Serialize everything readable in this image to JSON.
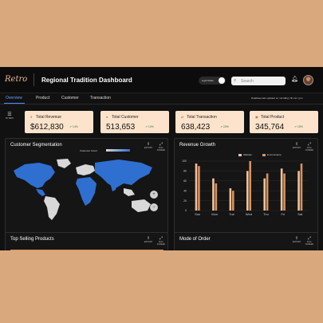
{
  "app": {
    "logo": "Retro",
    "title": "Regional Tradition Dashboard"
  },
  "header": {
    "toggle_label": "Light Mode",
    "search_placeholder": "Search",
    "db_updated": "Database last updated on mm/dd/yy hh:mm | pm"
  },
  "tabs": [
    {
      "label": "Overview",
      "active": true
    },
    {
      "label": "Product",
      "active": false
    },
    {
      "label": "Customer",
      "active": false
    },
    {
      "label": "Transaction",
      "active": false
    }
  ],
  "filters_label": "FILTERS",
  "kpis": [
    {
      "label": "Total Revenue",
      "value": "$612,830",
      "trend": "14%"
    },
    {
      "label": "Total Customer",
      "value": "513,653",
      "trend": "10%"
    },
    {
      "label": "Total Transaction",
      "value": "638,423",
      "trend": "20%"
    },
    {
      "label": "Total Product",
      "value": "345,764",
      "trend": "15%"
    }
  ],
  "customer_segmentation": {
    "title": "Customer Segmentation",
    "legend_label": "Customer Count",
    "export_label": "EXPORT",
    "fullscreen_label": "FULL SCREEN"
  },
  "revenue_growth": {
    "title": "Revenue Growth",
    "export_label": "EXPORT",
    "fullscreen_label": "FULL SCREEN"
  },
  "top_selling": {
    "title": "Top Selling Products",
    "export_label": "EXPORT",
    "fullscreen_label": "FULL SCREEN"
  },
  "mode_of_order": {
    "title": "Mode of Order",
    "export_label": "EXPORT",
    "fullscreen_label": "FULL SCREEN"
  },
  "chart_data": {
    "type": "bar",
    "title": "Revenue Growth",
    "categories": [
      "Sun",
      "Mon",
      "Tue",
      "Wed",
      "Thu",
      "Fri",
      "Sat"
    ],
    "series": [
      {
        "name": "Website",
        "values": [
          95,
          65,
          45,
          80,
          65,
          85,
          80
        ],
        "color": "#f0c39c"
      },
      {
        "name": "E-Commerce",
        "values": [
          90,
          55,
          40,
          100,
          75,
          75,
          95
        ],
        "color": "#d9925e"
      }
    ],
    "ylim": [
      0,
      100
    ],
    "yticks": [
      0,
      20,
      40,
      60,
      80,
      100
    ],
    "legend_position": "top-center",
    "grid": true
  },
  "colors": {
    "accent": "#4a8cff",
    "kpi_bg": "#fde3cc",
    "map_land": "#2f6fd0",
    "map_other": "#d8d8d8"
  }
}
